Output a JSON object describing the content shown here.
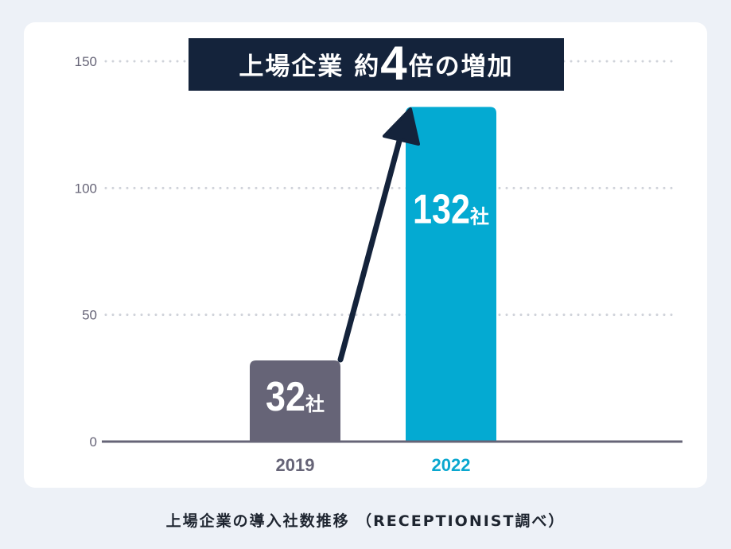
{
  "chart_data": {
    "type": "bar",
    "categories": [
      "2019",
      "2022"
    ],
    "values": [
      32,
      132
    ],
    "bar_labels": [
      "32社",
      "132社"
    ],
    "ylim": [
      0,
      150
    ],
    "yticks": [
      "0",
      "50",
      "100",
      "150"
    ],
    "grid": true,
    "annotation": {
      "prefix": "上場企業 約",
      "number": "4",
      "suffix": "倍の増加"
    }
  },
  "colors": {
    "bar_2019": "#666477",
    "bar_2022": "#04aad2",
    "label_2022": "#0aa7cf",
    "axis": "#666477",
    "navy": "#14233b",
    "grid": "#cfd2d9"
  },
  "caption": "上場企業の導入社数推移 （RECEPTIONIST調べ）"
}
